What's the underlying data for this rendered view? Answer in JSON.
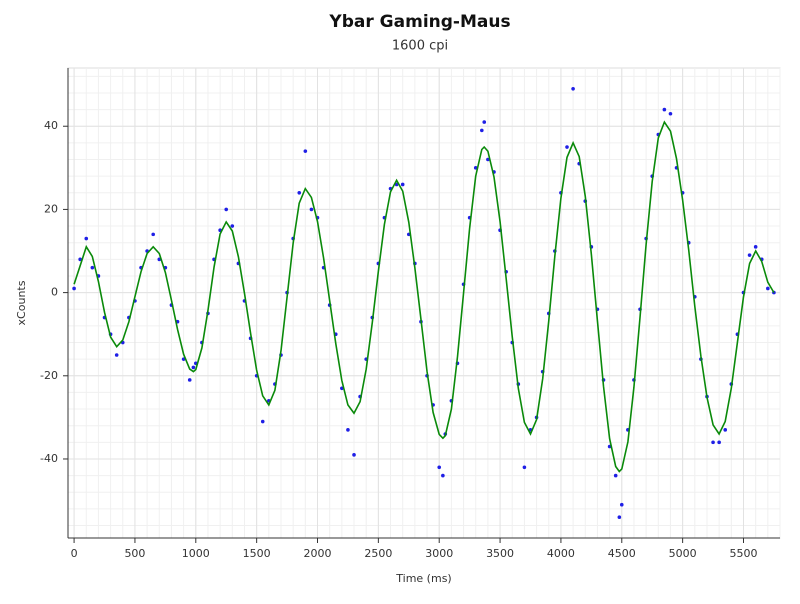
{
  "chart_data": {
    "type": "scatter-line",
    "title": "Ybar Gaming-Maus",
    "subtitle": "1600 cpi",
    "x_label": "Time (ms)",
    "y_label": "xCounts",
    "xlim": [
      -50,
      5800
    ],
    "ylim": [
      -59,
      54
    ],
    "xticks": [
      0,
      500,
      1000,
      1500,
      2000,
      2500,
      3000,
      3500,
      4000,
      4500,
      5000,
      5500
    ],
    "yticks": [
      -40,
      -20,
      0,
      20,
      40
    ],
    "grid": true,
    "minor_grid_divisions": 5,
    "x": [
      0,
      50,
      100,
      150,
      200,
      250,
      300,
      350,
      400,
      450,
      500,
      550,
      600,
      650,
      700,
      750,
      800,
      850,
      900,
      950,
      980,
      1000,
      1050,
      1100,
      1150,
      1200,
      1250,
      1300,
      1350,
      1400,
      1450,
      1500,
      1550,
      1600,
      1650,
      1700,
      1750,
      1800,
      1850,
      1900,
      1950,
      2000,
      2050,
      2100,
      2150,
      2200,
      2250,
      2300,
      2350,
      2400,
      2450,
      2500,
      2550,
      2600,
      2650,
      2700,
      2750,
      2800,
      2850,
      2900,
      2950,
      3000,
      3030,
      3050,
      3100,
      3150,
      3200,
      3250,
      3300,
      3350,
      3370,
      3400,
      3450,
      3500,
      3550,
      3600,
      3650,
      3700,
      3750,
      3800,
      3850,
      3900,
      3950,
      4000,
      4050,
      4100,
      4150,
      4200,
      4250,
      4300,
      4350,
      4400,
      4450,
      4480,
      4500,
      4550,
      4600,
      4650,
      4700,
      4750,
      4800,
      4850,
      4900,
      4950,
      5000,
      5050,
      5100,
      5150,
      5200,
      5250,
      5300,
      5350,
      5400,
      5450,
      5500,
      5550,
      5600,
      5650,
      5700,
      5750
    ],
    "series": [
      {
        "style": "dots",
        "color": "#1f1fe6",
        "values": [
          1,
          8,
          13,
          6,
          4,
          -6,
          -10,
          -15,
          -12,
          -6,
          -2,
          6,
          10,
          14,
          8,
          6,
          -3,
          -7,
          -16,
          -21,
          -18,
          -17,
          -12,
          -5,
          8,
          15,
          20,
          16,
          7,
          -2,
          -11,
          -20,
          -31,
          -26,
          -22,
          -15,
          0,
          13,
          24,
          34,
          20,
          18,
          6,
          -3,
          -10,
          -23,
          -33,
          -39,
          -25,
          -16,
          -6,
          7,
          18,
          25,
          26,
          26,
          14,
          7,
          -7,
          -20,
          -27,
          -42,
          -44,
          -34,
          -26,
          -17,
          2,
          18,
          30,
          39,
          41,
          32,
          29,
          15,
          5,
          -12,
          -22,
          -42,
          -33,
          -30,
          -19,
          -5,
          10,
          24,
          35,
          49,
          31,
          22,
          11,
          -4,
          -21,
          -37,
          -44,
          -54,
          -51,
          -33,
          -21,
          -4,
          13,
          28,
          38,
          44,
          43,
          30,
          24,
          12,
          -1,
          -16,
          -25,
          -36,
          -36,
          -33,
          -22,
          -10,
          0,
          9,
          11,
          8,
          1,
          0
        ]
      },
      {
        "style": "line",
        "color": "#0a8a0a",
        "values": [
          2,
          6.5,
          11,
          8.7,
          2.7,
          -4.7,
          -10.7,
          -13,
          -11.4,
          -7,
          -1,
          5,
          9.4,
          11,
          9.4,
          4.8,
          -1.9,
          -8.8,
          -14.8,
          -18.4,
          -19,
          -18.5,
          -13.3,
          -4.2,
          6.2,
          14.1,
          17,
          14.8,
          8.6,
          -0.2,
          -9.8,
          -18.6,
          -24.8,
          -27,
          -23.5,
          -14,
          -1,
          12,
          21.5,
          25,
          22.9,
          17.1,
          8.3,
          -2,
          -12.3,
          -21.1,
          -27,
          -29,
          -26.2,
          -18.4,
          -7.2,
          5.2,
          16.4,
          24.2,
          27,
          24.4,
          16.9,
          5.9,
          -6.5,
          -18.9,
          -28.8,
          -34.1,
          -35,
          -34.4,
          -28,
          -15.4,
          0,
          15.4,
          28,
          34.4,
          35,
          34,
          27.8,
          17,
          3.3,
          -10.5,
          -23,
          -31.2,
          -34,
          -30.5,
          -20.7,
          -6.7,
          8.7,
          22.7,
          32.5,
          36,
          32.7,
          23.1,
          9.1,
          -6.7,
          -22.5,
          -35.1,
          -41.8,
          -43,
          -42.4,
          -35.9,
          -22.8,
          -6,
          11.6,
          26.7,
          37.2,
          41,
          38.8,
          32.2,
          22.3,
          10.3,
          -3.3,
          -15.3,
          -25.2,
          -31.8,
          -34,
          -31,
          -23,
          -12,
          -1,
          7,
          10,
          7.5,
          2.5,
          0
        ]
      }
    ]
  }
}
